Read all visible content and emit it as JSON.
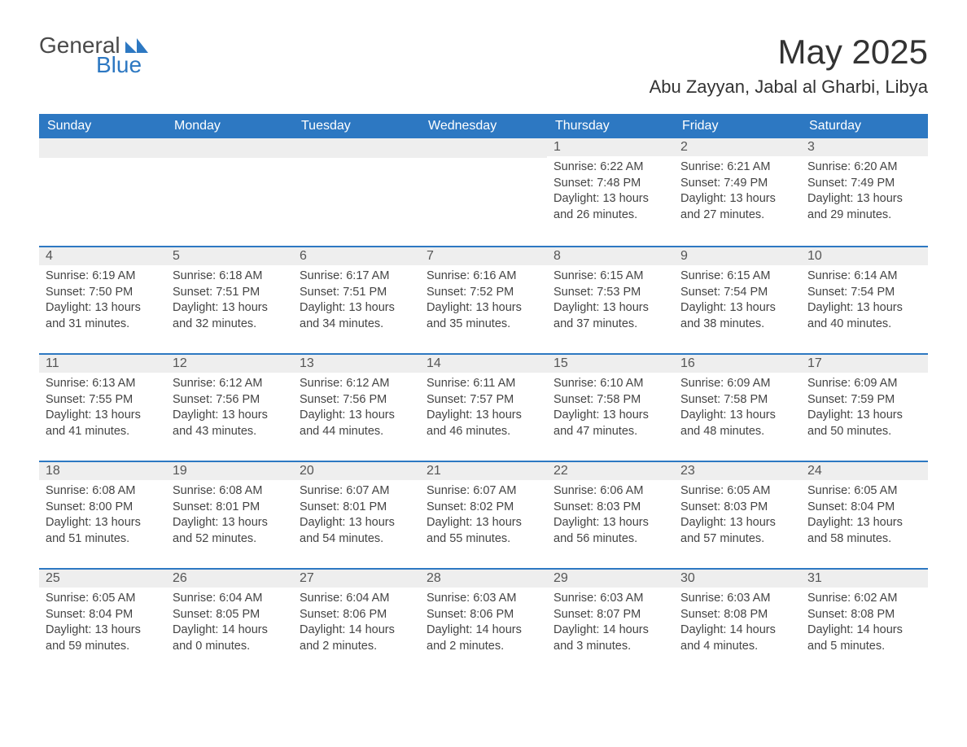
{
  "logo": {
    "general": "General",
    "blue": "Blue"
  },
  "header": {
    "month_title": "May 2025",
    "location": "Abu Zayyan, Jabal al Gharbi, Libya"
  },
  "colors": {
    "header_bg": "#2d78c2",
    "header_text": "#ffffff",
    "daynum_bg": "#eeeeee",
    "border": "#2d78c2",
    "text": "#444444"
  },
  "days_of_week": [
    "Sunday",
    "Monday",
    "Tuesday",
    "Wednesday",
    "Thursday",
    "Friday",
    "Saturday"
  ],
  "leading_blanks": 4,
  "cells": [
    {
      "n": "1",
      "sunrise": "6:22 AM",
      "sunset": "7:48 PM",
      "daylight": "13 hours and 26 minutes."
    },
    {
      "n": "2",
      "sunrise": "6:21 AM",
      "sunset": "7:49 PM",
      "daylight": "13 hours and 27 minutes."
    },
    {
      "n": "3",
      "sunrise": "6:20 AM",
      "sunset": "7:49 PM",
      "daylight": "13 hours and 29 minutes."
    },
    {
      "n": "4",
      "sunrise": "6:19 AM",
      "sunset": "7:50 PM",
      "daylight": "13 hours and 31 minutes."
    },
    {
      "n": "5",
      "sunrise": "6:18 AM",
      "sunset": "7:51 PM",
      "daylight": "13 hours and 32 minutes."
    },
    {
      "n": "6",
      "sunrise": "6:17 AM",
      "sunset": "7:51 PM",
      "daylight": "13 hours and 34 minutes."
    },
    {
      "n": "7",
      "sunrise": "6:16 AM",
      "sunset": "7:52 PM",
      "daylight": "13 hours and 35 minutes."
    },
    {
      "n": "8",
      "sunrise": "6:15 AM",
      "sunset": "7:53 PM",
      "daylight": "13 hours and 37 minutes."
    },
    {
      "n": "9",
      "sunrise": "6:15 AM",
      "sunset": "7:54 PM",
      "daylight": "13 hours and 38 minutes."
    },
    {
      "n": "10",
      "sunrise": "6:14 AM",
      "sunset": "7:54 PM",
      "daylight": "13 hours and 40 minutes."
    },
    {
      "n": "11",
      "sunrise": "6:13 AM",
      "sunset": "7:55 PM",
      "daylight": "13 hours and 41 minutes."
    },
    {
      "n": "12",
      "sunrise": "6:12 AM",
      "sunset": "7:56 PM",
      "daylight": "13 hours and 43 minutes."
    },
    {
      "n": "13",
      "sunrise": "6:12 AM",
      "sunset": "7:56 PM",
      "daylight": "13 hours and 44 minutes."
    },
    {
      "n": "14",
      "sunrise": "6:11 AM",
      "sunset": "7:57 PM",
      "daylight": "13 hours and 46 minutes."
    },
    {
      "n": "15",
      "sunrise": "6:10 AM",
      "sunset": "7:58 PM",
      "daylight": "13 hours and 47 minutes."
    },
    {
      "n": "16",
      "sunrise": "6:09 AM",
      "sunset": "7:58 PM",
      "daylight": "13 hours and 48 minutes."
    },
    {
      "n": "17",
      "sunrise": "6:09 AM",
      "sunset": "7:59 PM",
      "daylight": "13 hours and 50 minutes."
    },
    {
      "n": "18",
      "sunrise": "6:08 AM",
      "sunset": "8:00 PM",
      "daylight": "13 hours and 51 minutes."
    },
    {
      "n": "19",
      "sunrise": "6:08 AM",
      "sunset": "8:01 PM",
      "daylight": "13 hours and 52 minutes."
    },
    {
      "n": "20",
      "sunrise": "6:07 AM",
      "sunset": "8:01 PM",
      "daylight": "13 hours and 54 minutes."
    },
    {
      "n": "21",
      "sunrise": "6:07 AM",
      "sunset": "8:02 PM",
      "daylight": "13 hours and 55 minutes."
    },
    {
      "n": "22",
      "sunrise": "6:06 AM",
      "sunset": "8:03 PM",
      "daylight": "13 hours and 56 minutes."
    },
    {
      "n": "23",
      "sunrise": "6:05 AM",
      "sunset": "8:03 PM",
      "daylight": "13 hours and 57 minutes."
    },
    {
      "n": "24",
      "sunrise": "6:05 AM",
      "sunset": "8:04 PM",
      "daylight": "13 hours and 58 minutes."
    },
    {
      "n": "25",
      "sunrise": "6:05 AM",
      "sunset": "8:04 PM",
      "daylight": "13 hours and 59 minutes."
    },
    {
      "n": "26",
      "sunrise": "6:04 AM",
      "sunset": "8:05 PM",
      "daylight": "14 hours and 0 minutes."
    },
    {
      "n": "27",
      "sunrise": "6:04 AM",
      "sunset": "8:06 PM",
      "daylight": "14 hours and 2 minutes."
    },
    {
      "n": "28",
      "sunrise": "6:03 AM",
      "sunset": "8:06 PM",
      "daylight": "14 hours and 2 minutes."
    },
    {
      "n": "29",
      "sunrise": "6:03 AM",
      "sunset": "8:07 PM",
      "daylight": "14 hours and 3 minutes."
    },
    {
      "n": "30",
      "sunrise": "6:03 AM",
      "sunset": "8:08 PM",
      "daylight": "14 hours and 4 minutes."
    },
    {
      "n": "31",
      "sunrise": "6:02 AM",
      "sunset": "8:08 PM",
      "daylight": "14 hours and 5 minutes."
    }
  ],
  "labels": {
    "sunrise": "Sunrise:",
    "sunset": "Sunset:",
    "daylight": "Daylight:"
  }
}
